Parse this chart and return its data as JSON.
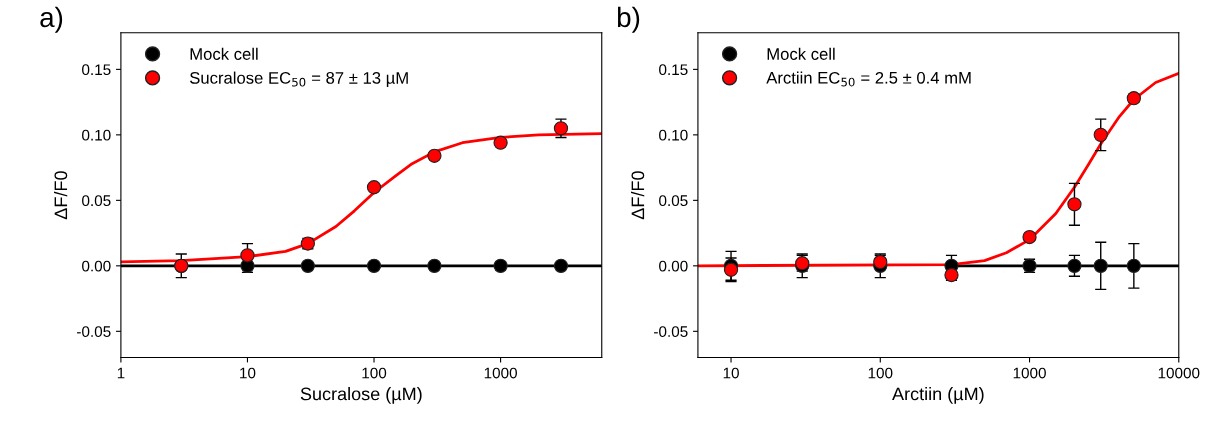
{
  "chart_data": [
    {
      "type": "scatter",
      "title": "a)",
      "xlabel": "Sucralose (µM)",
      "ylabel": "ΔF/F0",
      "log": "x",
      "xlim": [
        1,
        6300
      ],
      "xticks": [
        1,
        10,
        100,
        1000
      ],
      "ylim": [
        -0.07,
        0.178
      ],
      "yticks": [
        {
          "value": -0.05,
          "label": "-0.05"
        },
        {
          "value": 0,
          "label": "0.00"
        },
        {
          "value": 0.05,
          "label": "0.05"
        },
        {
          "value": 0.1,
          "label": "0.10"
        },
        {
          "value": 0.15,
          "label": "0.15"
        }
      ],
      "legend": "top left",
      "marker": "circle",
      "grid": false,
      "series": [
        {
          "type": "line",
          "marker": "none",
          "color": "#000000",
          "x": [
            1,
            6300
          ],
          "values": [
            0,
            0
          ]
        },
        {
          "type": "line",
          "marker": "none",
          "color": "#ff0000",
          "x": [
            1,
            3,
            10,
            20,
            30,
            50,
            70,
            100,
            150,
            200,
            300,
            500,
            1000,
            2000,
            6300
          ],
          "values": [
            0.003,
            0.004,
            0.007,
            0.011,
            0.017,
            0.03,
            0.042,
            0.056,
            0.069,
            0.078,
            0.087,
            0.094,
            0.098,
            0.1,
            0.101
          ]
        },
        {
          "name": "Mock cell",
          "color": "#000000",
          "x": [
            3,
            10,
            30,
            100,
            300,
            1000,
            3000
          ],
          "values": [
            0,
            0,
            0,
            0,
            0,
            0,
            0
          ],
          "errors": [
            null,
            0.005,
            0.002,
            null,
            0.002,
            0.003,
            null
          ]
        },
        {
          "name": "Sucralose EC$_{50}$ = 87 ± 13 µM",
          "color": "#ff0000",
          "x": [
            3,
            10,
            30,
            100,
            300,
            1000,
            3000
          ],
          "values": [
            0,
            0.008,
            0.017,
            0.06,
            0.084,
            0.094,
            0.105
          ],
          "errors": [
            0.009,
            0.009,
            0.004,
            null,
            null,
            null,
            0.007
          ]
        }
      ]
    },
    {
      "type": "scatter",
      "title": "b)",
      "xlabel": "Arctiin (µM)",
      "ylabel": "ΔF/F0",
      "log": "x",
      "xlim": [
        6,
        10000
      ],
      "xticks": [
        10,
        100,
        1000,
        10000
      ],
      "ylim": [
        -0.07,
        0.178
      ],
      "yticks": [
        {
          "value": -0.05,
          "label": "-0.05"
        },
        {
          "value": 0,
          "label": "0.00"
        },
        {
          "value": 0.05,
          "label": "0.05"
        },
        {
          "value": 0.1,
          "label": "0.10"
        },
        {
          "value": 0.15,
          "label": "0.15"
        }
      ],
      "legend": "top left",
      "marker": "circle",
      "grid": false,
      "series": [
        {
          "type": "line",
          "marker": "none",
          "color": "#000000",
          "x": [
            300,
            10000
          ],
          "values": [
            0,
            0
          ]
        },
        {
          "type": "line",
          "marker": "none",
          "color": "#ff0000",
          "x": [
            6,
            300,
            500,
            700,
            1000,
            1500,
            2000,
            2500,
            3000,
            4000,
            5000,
            7000,
            10000
          ],
          "values": [
            0,
            0.001,
            0.004,
            0.01,
            0.02,
            0.04,
            0.06,
            0.078,
            0.093,
            0.114,
            0.127,
            0.14,
            0.147
          ]
        },
        {
          "name": "Mock cell",
          "color": "#000000",
          "x": [
            10,
            30,
            100,
            300,
            1000,
            2000,
            3000,
            5000
          ],
          "values": [
            0,
            0,
            0,
            0,
            0,
            0,
            0,
            0
          ],
          "errors": [
            0.011,
            0.009,
            0.009,
            0.008,
            0.005,
            0.008,
            0.018,
            0.017
          ]
        },
        {
          "name": "Arctiin EC$_{50}$ = 2.5 ± 0.4 mM",
          "color": "#ff0000",
          "x": [
            10,
            30,
            100,
            300,
            1000,
            2000,
            3000,
            5000
          ],
          "values": [
            -0.003,
            0.002,
            0.003,
            -0.007,
            0.022,
            0.047,
            0.1,
            0.128
          ],
          "errors": [
            0.009,
            0.006,
            0.005,
            0.004,
            null,
            0.016,
            0.012,
            0.003
          ]
        }
      ]
    }
  ]
}
